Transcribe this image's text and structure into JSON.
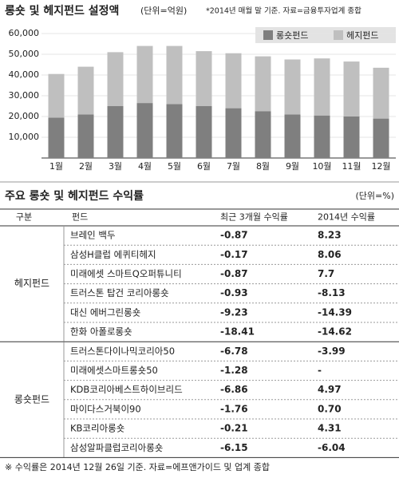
{
  "chart_data": {
    "type": "bar",
    "stacked": true,
    "title": "롱숏 및 헤지펀드 설정액",
    "subtitle": "(단위=억원)",
    "note": "*2014년 매월 말 기준. 자료=금융투자업계 종합",
    "categories": [
      "1월",
      "2월",
      "3월",
      "4월",
      "5월",
      "6월",
      "7월",
      "8월",
      "9월",
      "10월",
      "11월",
      "12월"
    ],
    "series": [
      {
        "name": "롱숏펀드",
        "color": "#7f7f7f",
        "values": [
          19500,
          21000,
          25000,
          26500,
          26000,
          25000,
          24000,
          22500,
          21000,
          20500,
          20000,
          19000
        ]
      },
      {
        "name": "헤지펀드",
        "color": "#bfbfbf",
        "values": [
          21000,
          23000,
          26000,
          27500,
          28000,
          26500,
          26500,
          26500,
          26500,
          27500,
          26500,
          24500
        ]
      }
    ],
    "ylim": [
      0,
      60000
    ],
    "yticks": [
      {
        "value": 10000,
        "label": "10,000"
      },
      {
        "value": 20000,
        "label": "20,000"
      },
      {
        "value": 30000,
        "label": "30,000"
      },
      {
        "value": 40000,
        "label": "40,000"
      },
      {
        "value": 50000,
        "label": "50,000"
      },
      {
        "value": 60000,
        "label": "60,000"
      }
    ],
    "grid": true
  },
  "table": {
    "title": "주요 롱숏 및 헤지펀드 수익률",
    "unit": "(단위=%)",
    "header": [
      "구분",
      "펀드",
      "최근 3개월 수익률",
      "2014년 수익률"
    ],
    "groups": [
      {
        "name": "헤지펀드",
        "rows": [
          [
            "브레인 백두",
            "-0.87",
            "8.23"
          ],
          [
            "삼성H클럽 에퀴티헤지",
            "-0.17",
            "8.06"
          ],
          [
            "미래에셋 스마트Q오퍼튜니티",
            "-0.87",
            "7.7"
          ],
          [
            "트러스톤 탑건 코리아롱숏",
            "-0.93",
            "-8.13"
          ],
          [
            "대신 에버그린롱숏",
            "-9.23",
            "-14.39"
          ],
          [
            "한화 아폴로롱숏",
            "-18.41",
            "-14.62"
          ]
        ]
      },
      {
        "name": "롱숏펀드",
        "rows": [
          [
            "트러스톤다이나믹코리아50",
            "-6.78",
            "-3.99"
          ],
          [
            "미래에셋스마트롱숏50",
            "-1.28",
            "-"
          ],
          [
            "KDB코리아베스트하이브리드",
            "-6.86",
            "4.97"
          ],
          [
            "마이다스거북이90",
            "-1.76",
            "0.70"
          ],
          [
            "KB코리아롱숏",
            "-0.21",
            "4.31"
          ],
          [
            "삼성알파클럽코리아롱숏",
            "-6.15",
            "-6.04"
          ]
        ]
      }
    ],
    "footnote": "※ 수익률은 2014년 12월 26일 기준. 자료=에프앤가이드 및 업계 종합"
  }
}
